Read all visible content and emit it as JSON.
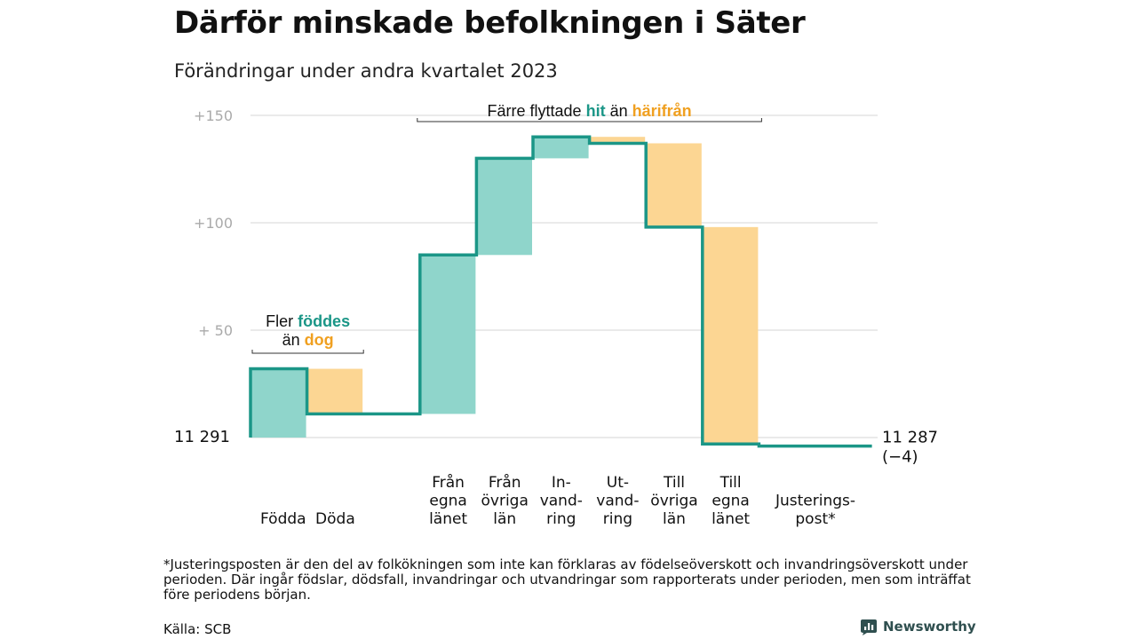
{
  "title": "Därför minskade befolkningen i Säter",
  "subtitle": "Förändringar under andra kvartalet 2023",
  "colors": {
    "increase": "#8fd5cb",
    "decrease": "#fcd693",
    "line": "#1b9687",
    "teal_text": "#1b9687",
    "orange_text": "#f0a020",
    "grid": "#dddddd",
    "tick": "#aaaaaa"
  },
  "chart_data": {
    "type": "waterfall",
    "baseline": 11291,
    "start_label": "11  291",
    "end_label": "11 287",
    "end_change_label": "(−4)",
    "y_ticks": [
      {
        "value": 150,
        "label": "+150"
      },
      {
        "value": 100,
        "label": "+100"
      },
      {
        "value": 50,
        "label": "+  50"
      }
    ],
    "ylim": [
      -5,
      152
    ],
    "steps": [
      {
        "key": "fodda",
        "label_lines": [
          "Födda"
        ],
        "change": 32,
        "kind": "increase"
      },
      {
        "key": "doda",
        "label_lines": [
          "Döda"
        ],
        "change": -21,
        "kind": "decrease"
      },
      {
        "key": "gap",
        "label_lines": [],
        "change": 0,
        "kind": "none"
      },
      {
        "key": "fran_egna",
        "label_lines": [
          "Från",
          "egna",
          "länet"
        ],
        "change": 74,
        "kind": "increase"
      },
      {
        "key": "fran_ovriga",
        "label_lines": [
          "Från",
          "övriga",
          "län"
        ],
        "change": 45,
        "kind": "increase"
      },
      {
        "key": "invandring",
        "label_lines": [
          "In-",
          "vand-",
          "ring"
        ],
        "change": 10,
        "kind": "increase"
      },
      {
        "key": "utvandring",
        "label_lines": [
          "Ut-",
          "vand-",
          "ring"
        ],
        "change": -3,
        "kind": "decrease"
      },
      {
        "key": "till_ovriga",
        "label_lines": [
          "Till",
          "övriga",
          "län"
        ],
        "change": -39,
        "kind": "decrease"
      },
      {
        "key": "till_egna",
        "label_lines": [
          "Till",
          "egna",
          "länet"
        ],
        "change": -101,
        "kind": "decrease"
      },
      {
        "key": "justering",
        "label_lines": [
          "Justerings-",
          "post*"
        ],
        "change": -1,
        "kind": "none",
        "width": 2
      }
    ],
    "annotations": [
      {
        "key": "births",
        "prefix": "Fler ",
        "highlight1": "föddes",
        "line2_prefix": "än ",
        "highlight2": "dog"
      },
      {
        "key": "moves",
        "prefix": "Färre flyttade ",
        "highlight1": "hit",
        "middle": " än ",
        "highlight2": "härifrån"
      }
    ]
  },
  "footnote": "*Justeringsposten är den del av folkökningen som inte kan förklaras av födelseöverskott och invandringsöverskott under perioden. Där ingår födslar, dödsfall, invandringar och utvandringar som rapporterats under perioden, men som inträffat före periodens början.",
  "source": "Källa: SCB",
  "brand": {
    "name": "Newsworthy",
    "icon": "bar-chart-logo-icon"
  }
}
